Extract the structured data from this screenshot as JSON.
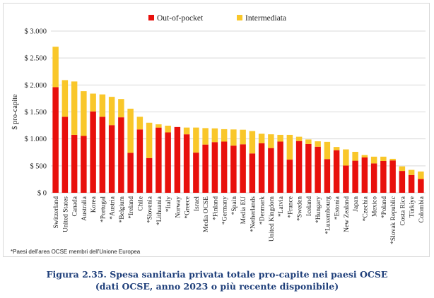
{
  "chart_data": {
    "type": "bar",
    "stacked": true,
    "ylabel": "$ pro-capite",
    "ylim": [
      0,
      3000
    ],
    "yticks": [
      0,
      500,
      1000,
      1500,
      2000,
      2500,
      3000
    ],
    "ytick_labels": [
      "$ 0",
      "$ 500",
      "$ 1.000",
      "$ 1.500",
      "$ 2.000",
      "$ 2.500",
      "$ 3.000"
    ],
    "legend_position": "top",
    "categories": [
      "Switzerland",
      "United States",
      "Canada",
      "Australia",
      "Korea",
      "*Portugal",
      "*Austria",
      "*Belgium",
      "*Ireland",
      "Chile",
      "*Slovenia",
      "*Lithuania",
      "*Italy",
      "Norway",
      "*Greece",
      "Israel",
      "Media OCSE",
      "*Finland",
      "*Germany",
      "*Spain",
      "Media EU",
      "*Netherlands",
      "*Denmark",
      "United Kingdom",
      "*Latvia",
      "*France",
      "*Sweden",
      "Iceland",
      "*Hungary",
      "*Luxembourg",
      "*Estonia",
      "New Zealand",
      "Japan",
      "*Czechia",
      "Mexico",
      "*Poland",
      "*Slovak Republic",
      "Costa Rica",
      "Türkiye",
      "Colombia"
    ],
    "series": [
      {
        "name": "Out-of-pocket",
        "color": "#e8100c",
        "values": [
          1960,
          1410,
          1075,
          1055,
          1510,
          1410,
          1255,
          1400,
          740,
          1175,
          645,
          1210,
          1120,
          1220,
          1085,
          745,
          895,
          940,
          950,
          875,
          900,
          730,
          920,
          830,
          950,
          615,
          960,
          905,
          855,
          625,
          790,
          505,
          595,
          655,
          545,
          590,
          600,
          405,
          330,
          255
        ]
      },
      {
        "name": "Intermediata",
        "color": "#f9c72a",
        "values": [
          750,
          680,
          990,
          830,
          330,
          415,
          525,
          340,
          820,
          235,
          655,
          60,
          125,
          0,
          125,
          465,
          305,
          255,
          230,
          300,
          270,
          415,
          175,
          255,
          125,
          460,
          80,
          85,
          100,
          320,
          60,
          300,
          165,
          45,
          125,
          80,
          30,
          85,
          95,
          140
        ]
      }
    ]
  },
  "note": "*Paesi dell'area OCSE membri dell'Unione Europea",
  "caption": {
    "line1": "Figura 2.35. Spesa sanitaria privata totale pro-capite nei paesi OCSE",
    "line2": "(dati OCSE, anno 2023 o più recente disponibile)"
  }
}
